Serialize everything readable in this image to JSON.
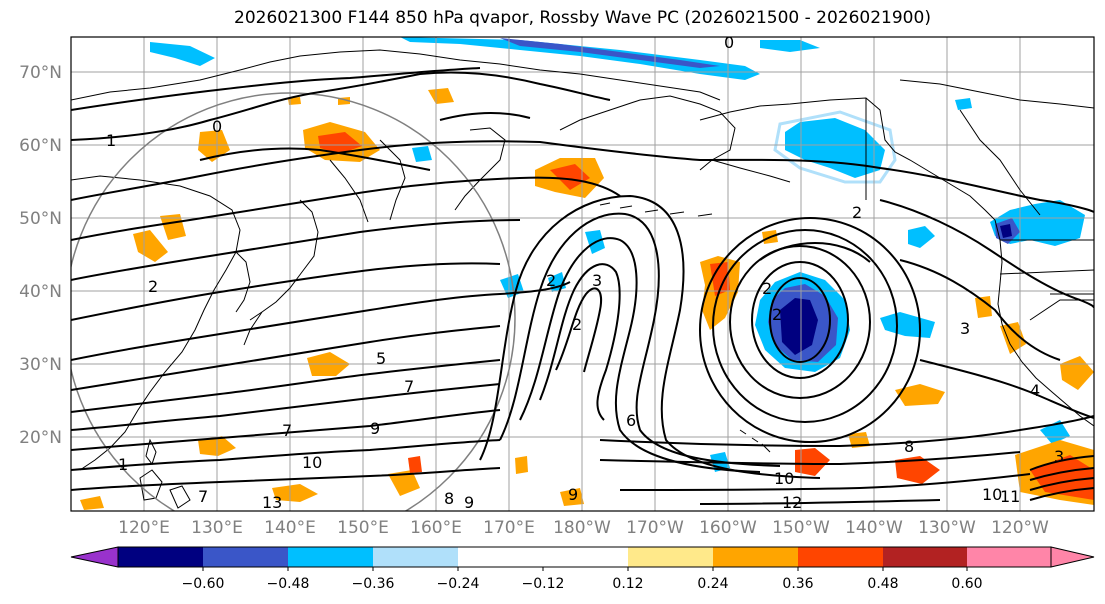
{
  "title": "2026021300 F144 850 hPa qvapor, Rossby Wave PC (2026021500 - 2026021900)",
  "latitude_labels": [
    "70°N",
    "60°N",
    "50°N",
    "40°N",
    "30°N",
    "20°N"
  ],
  "longitude_labels": [
    "120°E",
    "130°E",
    "140°E",
    "150°E",
    "160°E",
    "170°E",
    "180°W",
    "170°W",
    "160°W",
    "150°W",
    "140°W",
    "130°W",
    "120°W"
  ],
  "colorbar": {
    "ticks": [
      "−0.60",
      "−0.48",
      "−0.36",
      "−0.24",
      "−0.12",
      "0.12",
      "0.24",
      "0.36",
      "0.48",
      "0.60"
    ],
    "colors": [
      "#9932cc",
      "#000080",
      "#3a56c8",
      "#00bfff",
      "#b0e0fa",
      "#ffffff",
      "#ffe98a",
      "#ffa500",
      "#ff4500",
      "#b22222",
      "#ff85a8"
    ]
  },
  "contour_labels": [
    "1",
    "0",
    "0",
    "2",
    "2",
    "2",
    "3",
    "2",
    "2",
    "2",
    "5",
    "7",
    "7",
    "9",
    "10",
    "6",
    "8",
    "10",
    "12",
    "10",
    "11",
    "13",
    "8",
    "9",
    "9",
    "3",
    "4",
    "3",
    "1",
    "7"
  ]
}
